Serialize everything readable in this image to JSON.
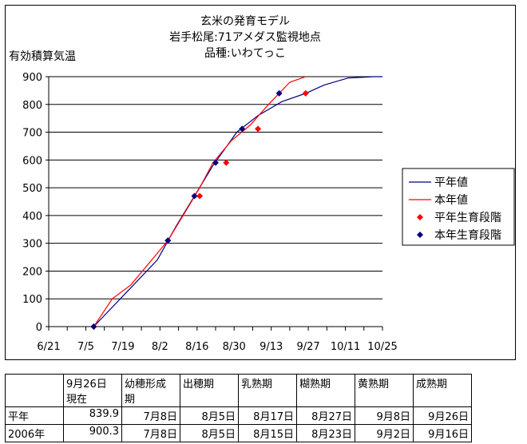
{
  "chart_data": {
    "type": "line",
    "title_lines": [
      "玄米の発育モデル",
      "岩手松尾:71アメダス監視地点",
      "品種:いわてっこ"
    ],
    "ylabel": "有効積算気温",
    "ylim": [
      0,
      900
    ],
    "yticks": [
      "0",
      "100",
      "200",
      "300",
      "400",
      "500",
      "600",
      "700",
      "800",
      "900"
    ],
    "xlim": [
      "2006-06-21",
      "2006-10-25"
    ],
    "xticks": [
      {
        "date": "2006-06-21",
        "label": "6/21"
      },
      {
        "date": "2006-07-05",
        "label": "7/5"
      },
      {
        "date": "2006-07-19",
        "label": "7/19"
      },
      {
        "date": "2006-08-02",
        "label": "8/2"
      },
      {
        "date": "2006-08-16",
        "label": "8/16"
      },
      {
        "date": "2006-08-30",
        "label": "8/30"
      },
      {
        "date": "2006-09-13",
        "label": "9/13"
      },
      {
        "date": "2006-09-27",
        "label": "9/27"
      },
      {
        "date": "2006-10-11",
        "label": "10/11"
      },
      {
        "date": "2006-10-25",
        "label": "10/25"
      }
    ],
    "grid": "horizontal",
    "legend_position": "right",
    "series": [
      {
        "name": "平年値",
        "kind": "line",
        "color": "#000080",
        "points": [
          [
            "2006-07-08",
            0
          ],
          [
            "2006-07-20",
            120
          ],
          [
            "2006-08-01",
            240
          ],
          [
            "2006-08-08",
            360
          ],
          [
            "2006-08-15",
            470
          ],
          [
            "2006-08-22",
            580
          ],
          [
            "2006-08-31",
            700
          ],
          [
            "2006-09-08",
            760
          ],
          [
            "2006-09-17",
            810
          ],
          [
            "2006-09-26",
            840
          ],
          [
            "2006-10-03",
            870
          ],
          [
            "2006-10-12",
            895
          ],
          [
            "2006-10-22",
            900
          ],
          [
            "2006-10-25",
            900
          ]
        ]
      },
      {
        "name": "本年値",
        "kind": "line",
        "color": "#ff0000",
        "points": [
          [
            "2006-07-08",
            0
          ],
          [
            "2006-07-15",
            100
          ],
          [
            "2006-07-22",
            150
          ],
          [
            "2006-07-29",
            230
          ],
          [
            "2006-08-05",
            310
          ],
          [
            "2006-08-12",
            420
          ],
          [
            "2006-08-17",
            500
          ],
          [
            "2006-08-22",
            590
          ],
          [
            "2006-08-29",
            670
          ],
          [
            "2006-09-05",
            725
          ],
          [
            "2006-09-12",
            800
          ],
          [
            "2006-09-20",
            880
          ],
          [
            "2006-09-26",
            900
          ]
        ]
      },
      {
        "name": "平年生育段階",
        "kind": "marker",
        "color": "#ff0000",
        "points": [
          [
            "2006-07-08",
            0
          ],
          [
            "2006-08-05",
            310
          ],
          [
            "2006-08-17",
            470
          ],
          [
            "2006-08-27",
            590
          ],
          [
            "2006-09-08",
            712
          ],
          [
            "2006-09-26",
            840
          ]
        ]
      },
      {
        "name": "本年生育段階",
        "kind": "marker",
        "color": "#000080",
        "points": [
          [
            "2006-07-08",
            0
          ],
          [
            "2006-08-05",
            310
          ],
          [
            "2006-08-15",
            470
          ],
          [
            "2006-08-23",
            590
          ],
          [
            "2006-09-02",
            712
          ],
          [
            "2006-09-16",
            840
          ]
        ]
      }
    ]
  },
  "table": {
    "headers": [
      "",
      "9月26日\n現在",
      "幼穂形成\n期",
      "出穂期",
      "乳熟期",
      "糊熟期",
      "黄熟期",
      "成熟期"
    ],
    "rows": [
      [
        "平年",
        "839.9",
        "7月8日",
        "8月5日",
        "8月17日",
        "8月27日",
        "9月8日",
        "9月26日"
      ],
      [
        "2006年",
        "900.3",
        "7月8日",
        "8月5日",
        "8月15日",
        "8月23日",
        "9月2日",
        "9月16日"
      ]
    ]
  }
}
